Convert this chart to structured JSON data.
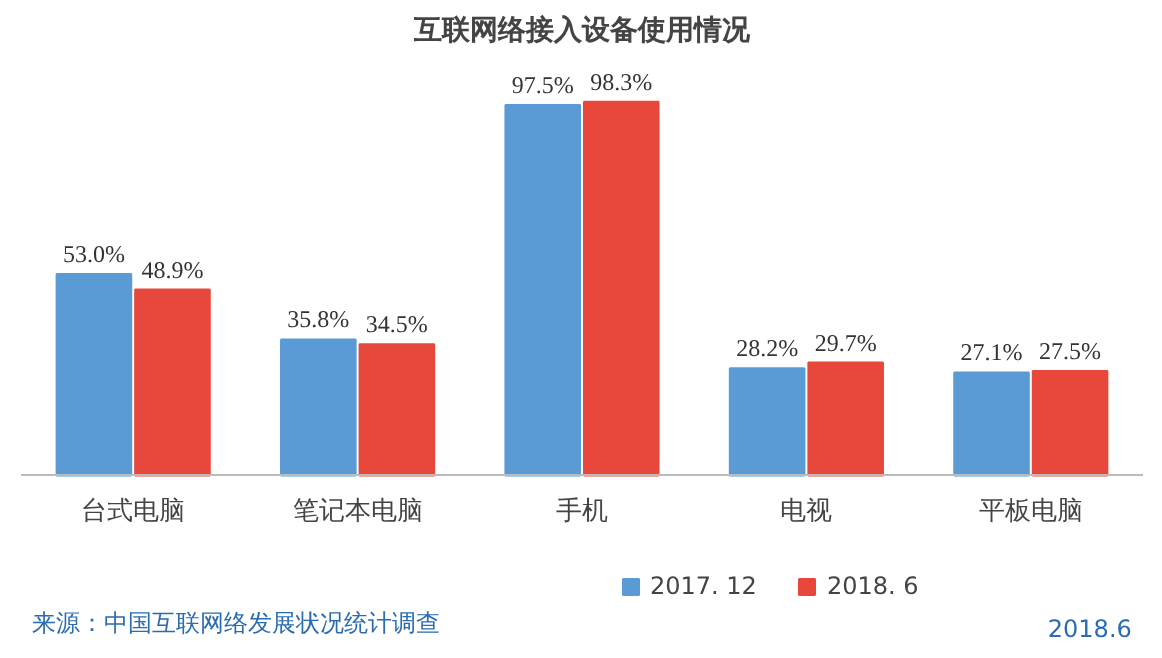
{
  "chart_data": {
    "type": "bar",
    "title": "互联网络接入设备使用情况",
    "categories": [
      "台式电脑",
      "笔记本电脑",
      "手机",
      "电视",
      "平板电脑"
    ],
    "series": [
      {
        "name": "2017. 12",
        "color": "#5b9bd5",
        "values": [
          53.0,
          35.8,
          97.5,
          28.2,
          27.1
        ],
        "value_labels": [
          "53.0%",
          "35.8%",
          "97.5%",
          "28.2%",
          "27.1%"
        ]
      },
      {
        "name": "2018. 6",
        "color": "#e8483c",
        "values": [
          48.9,
          34.5,
          98.3,
          29.7,
          27.5
        ],
        "value_labels": [
          "48.9%",
          "34.5%",
          "98.3%",
          "29.7%",
          "27.5%"
        ]
      }
    ],
    "legend": "bottom",
    "annotations": [
      "来源：中国互联网络发展状况统计调查",
      "2018.6"
    ]
  }
}
